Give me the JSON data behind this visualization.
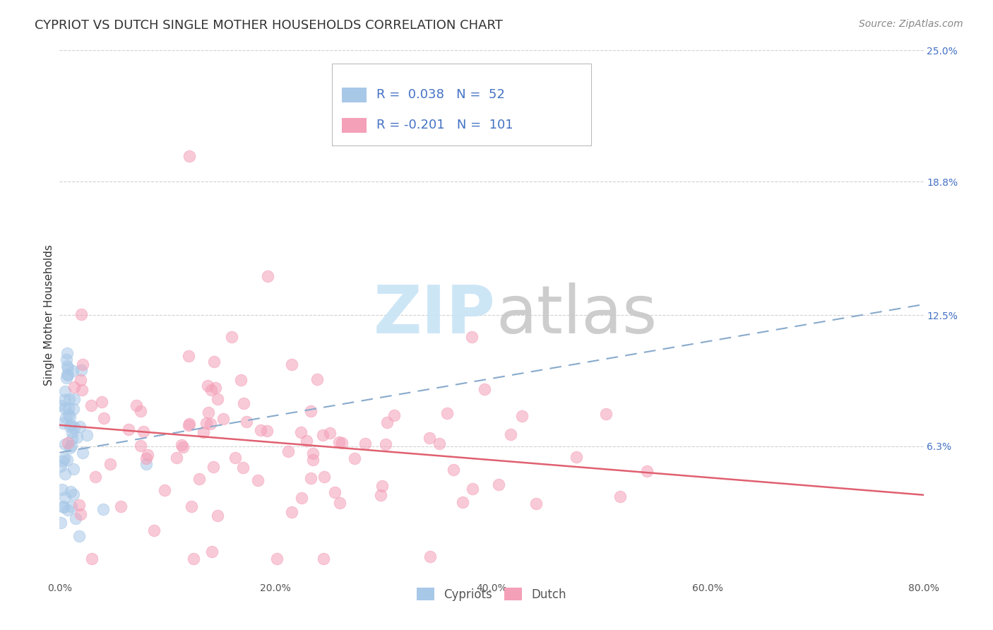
{
  "title": "CYPRIOT VS DUTCH SINGLE MOTHER HOUSEHOLDS CORRELATION CHART",
  "source": "Source: ZipAtlas.com",
  "ylabel": "Single Mother Households",
  "xlim": [
    0.0,
    0.8
  ],
  "ylim": [
    0.0,
    0.25
  ],
  "xtick_labels": [
    "0.0%",
    "20.0%",
    "40.0%",
    "60.0%",
    "80.0%"
  ],
  "xtick_vals": [
    0.0,
    0.2,
    0.4,
    0.6,
    0.8
  ],
  "ytick_labels": [
    "6.3%",
    "12.5%",
    "18.8%",
    "25.0%"
  ],
  "ytick_vals": [
    0.063,
    0.125,
    0.188,
    0.25
  ],
  "cypriot_R": 0.038,
  "cypriot_N": 52,
  "dutch_R": -0.201,
  "dutch_N": 101,
  "cypriot_color": "#a8c8e8",
  "dutch_color": "#f4a0b8",
  "trend_cypriot_color": "#88aacc",
  "trend_dutch_color": "#e06070",
  "legend_text_color": "#4472c4",
  "grid_color": "#cccccc",
  "background_color": "#ffffff",
  "title_fontsize": 13,
  "source_fontsize": 10,
  "axis_label_fontsize": 11,
  "tick_fontsize": 10,
  "legend_fontsize": 13,
  "cypriot_trend_x0": 0.0,
  "cypriot_trend_y0": 0.06,
  "cypriot_trend_x1": 0.8,
  "cypriot_trend_y1": 0.13,
  "dutch_trend_x0": 0.0,
  "dutch_trend_y0": 0.073,
  "dutch_trend_x1": 0.8,
  "dutch_trend_y1": 0.04
}
